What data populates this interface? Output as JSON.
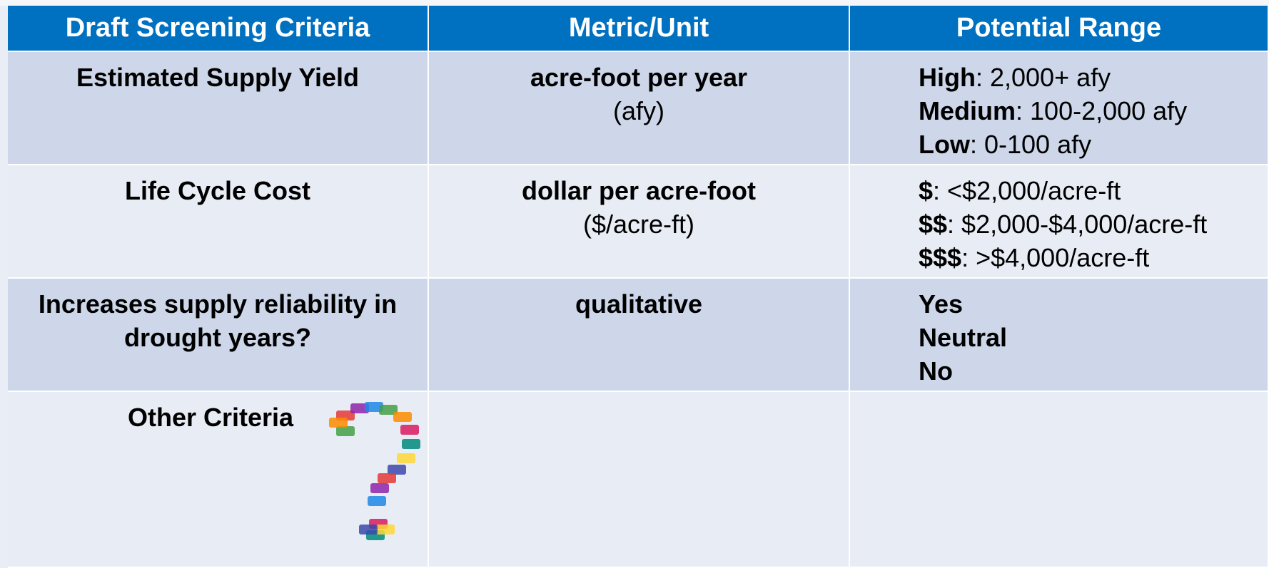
{
  "table": {
    "headers": [
      "Draft Screening Criteria",
      "Metric/Unit",
      "Potential Range"
    ],
    "rows": [
      {
        "criteria": "Estimated Supply Yield",
        "metric": "acre-foot per year",
        "unit": "(afy)",
        "range": [
          {
            "label": "High",
            "text": ": 2,000+ afy"
          },
          {
            "label": "Medium",
            "text": ": 100-2,000 afy"
          },
          {
            "label": "Low",
            "text": ": 0-100 afy"
          }
        ]
      },
      {
        "criteria": "Life Cycle Cost",
        "metric": "dollar per acre-foot",
        "unit": "($/acre-ft)",
        "range": [
          {
            "label": "$",
            "text": ": <$2,000/acre-ft"
          },
          {
            "label": "$$",
            "text": ": $2,000-$4,000/acre-ft"
          },
          {
            "label": "$$$",
            "text": ": >$4,000/acre-ft"
          }
        ]
      },
      {
        "criteria": "Increases supply reliability in drought years?",
        "metric": "qualitative",
        "range": [
          {
            "label": "Yes"
          },
          {
            "label": "Neutral"
          },
          {
            "label": "No"
          }
        ]
      },
      {
        "criteria": "Other Criteria"
      }
    ]
  }
}
